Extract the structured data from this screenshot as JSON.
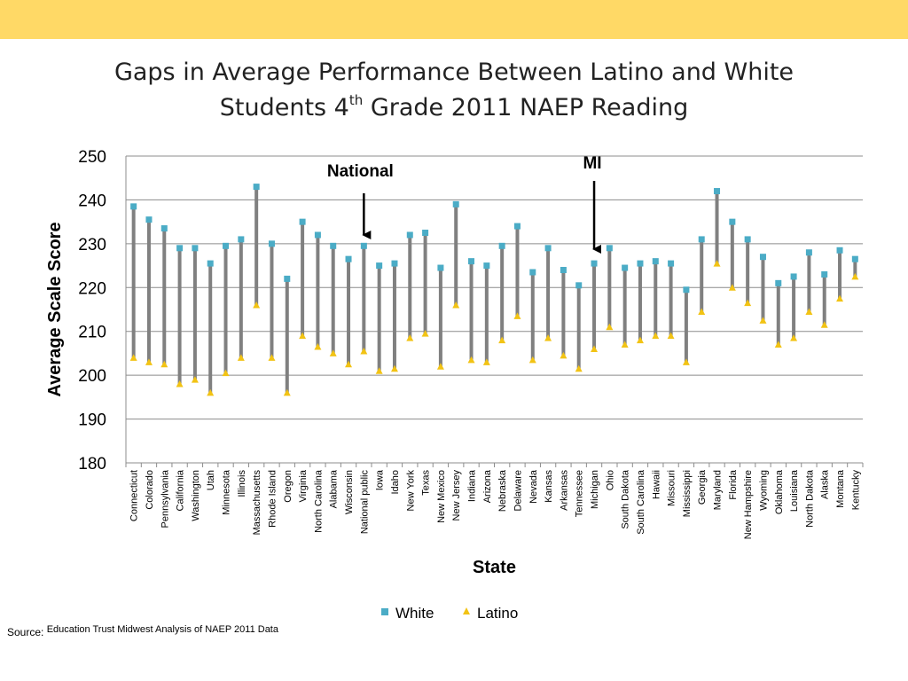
{
  "slide": {
    "band_color": "#FFD966",
    "title_line1": "Gaps in Average Performance Between Latino and White",
    "title_line2_a": "Students 4",
    "title_line2_sup": "th",
    "title_line2_b": " Grade 2011 NAEP Reading",
    "source_label": "Source:",
    "source_text": "Education Trust Midwest Analysis of NAEP 2011 Data"
  },
  "chart_data": {
    "type": "scatter",
    "title": "Gaps in Average Performance Between Latino and White Students 4th Grade 2011 NAEP Reading",
    "xlabel": "State",
    "ylabel": "Average Scale Score",
    "ylim": [
      180,
      250
    ],
    "yticks": [
      180,
      190,
      200,
      210,
      220,
      230,
      240,
      250
    ],
    "grid": true,
    "legend_position": "bottom",
    "categories": [
      "Connecticut",
      "Colorado",
      "Pennsylvania",
      "California",
      "Washington",
      "Utah",
      "Minnesota",
      "Illinois",
      "Massachusetts",
      "Rhode Island",
      "Oregon",
      "Virginia",
      "North Carolina",
      "Alabama",
      "Wisconsin",
      "National public",
      "Iowa",
      "Idaho",
      "New York",
      "Texas",
      "New Mexico",
      "New Jersey",
      "Indiana",
      "Arizona",
      "Nebraska",
      "Delaware",
      "Nevada",
      "Kansas",
      "Arkansas",
      "Tennessee",
      "Michigan",
      "Ohio",
      "South Dakota",
      "South Carolina",
      "Hawaii",
      "Missouri",
      "Mississippi",
      "Georgia",
      "Maryland",
      "Florida",
      "New Hampshire",
      "Wyoming",
      "Oklahoma",
      "Louisiana",
      "North Dakota",
      "Alaska",
      "Montana",
      "Kentucky"
    ],
    "series": [
      {
        "name": "White",
        "color": "#4BACC6",
        "marker": "square",
        "values": [
          238.5,
          235.5,
          233.5,
          229,
          229,
          225.5,
          229.5,
          231,
          243,
          230,
          222,
          235,
          232,
          229.5,
          226.5,
          229.5,
          225,
          225.5,
          232,
          232.5,
          224.5,
          239,
          226,
          225,
          229.5,
          234,
          223.5,
          229,
          224,
          220.5,
          225.5,
          229,
          224.5,
          225.5,
          226,
          225.5,
          219.5,
          231,
          242,
          235,
          231,
          227,
          221,
          222.5,
          228,
          223,
          228.5,
          226.5
        ]
      },
      {
        "name": "Latino",
        "color": "#F2C314",
        "marker": "triangle",
        "values": [
          204,
          203,
          202.5,
          198,
          199,
          196,
          200.5,
          204,
          216,
          204,
          196,
          209,
          206.5,
          205,
          202.5,
          205.5,
          201,
          201.5,
          208.5,
          209.5,
          202,
          216,
          203.5,
          203,
          208,
          213.5,
          203.5,
          208.5,
          204.5,
          201.5,
          206,
          211,
          207,
          208,
          209,
          209,
          203,
          214.5,
          225.5,
          220,
          216.5,
          212.5,
          207,
          208.5,
          214.5,
          211.5,
          217.5,
          222.5
        ]
      }
    ],
    "gap_line_color": "#808080",
    "annotations": [
      {
        "text": "National",
        "category": "National public"
      },
      {
        "text": "MI",
        "category": "Michigan"
      }
    ]
  }
}
